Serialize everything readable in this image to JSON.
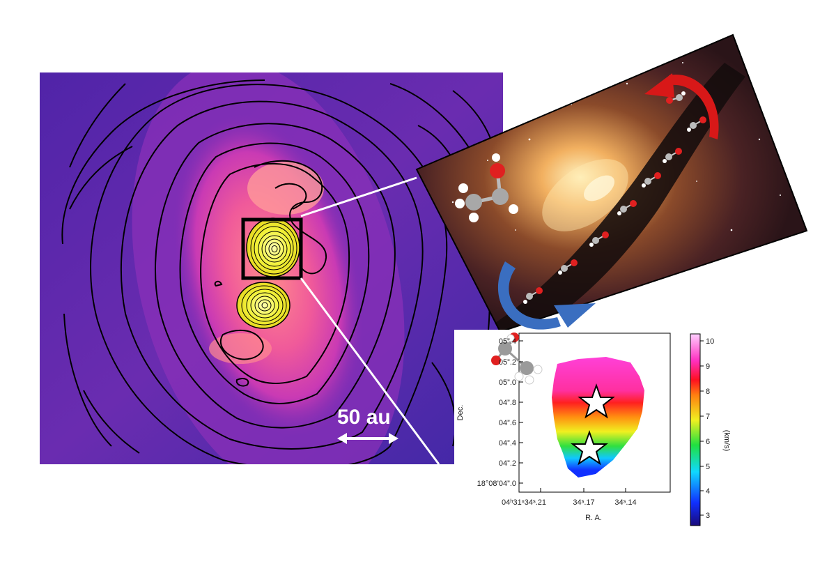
{
  "figure": {
    "scale_bar_label": "50 au"
  },
  "velocity_map": {
    "y_ticks": [
      "05”.4",
      "05”.2",
      "05”.0",
      "04”.8",
      "04”.6",
      "04”.4",
      "04”.2",
      "18°08’04”.0"
    ],
    "x_ticks": [
      "04ʰ31ⁿ34ˢ.21",
      "34ˢ.17",
      "34ˢ.14"
    ],
    "x_label": "R. A.",
    "y_label": "Dec.",
    "colorbar_ticks": [
      "10",
      "9",
      "8",
      "7",
      "6",
      "5",
      "4",
      "3"
    ],
    "colorbar_label": "(km/s)"
  },
  "colors": {
    "map_background": "#4a2aa8",
    "inset_box": "#000000",
    "arrow_red": "#d81818",
    "arrow_blue": "#3a6ec0",
    "star_fill": "#ffffff"
  }
}
